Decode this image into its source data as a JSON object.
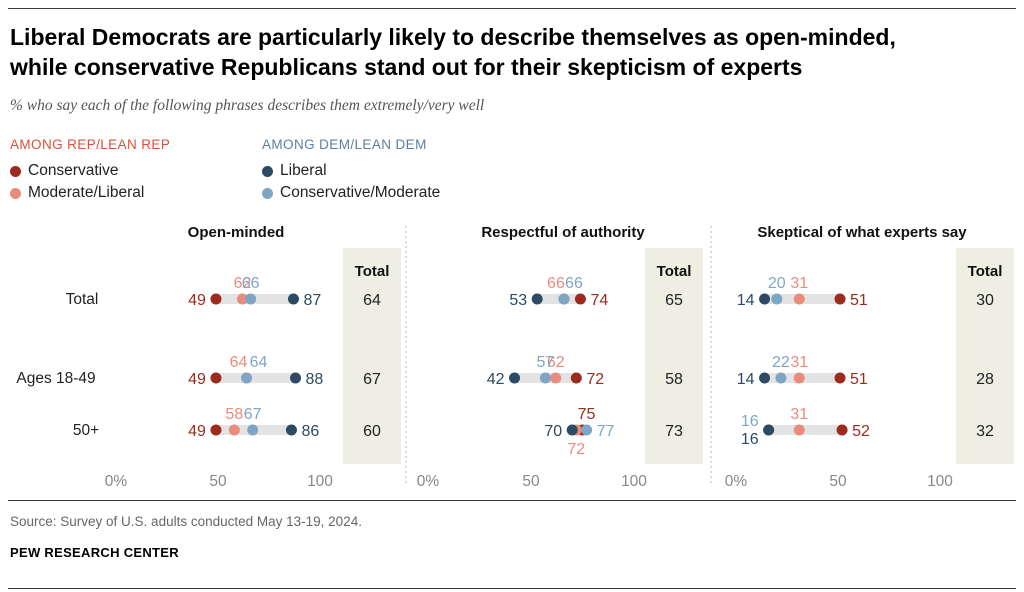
{
  "title": {
    "line1": "Liberal Democrats are particularly likely to describe themselves as open-minded,",
    "line2": "while conservative Republicans stand out for their skepticism of experts"
  },
  "subtitle": "% who say each of the following phrases describes them extremely/very well",
  "legend": {
    "rep": {
      "heading": "AMONG REP/LEAN REP",
      "items": [
        {
          "label": "Conservative",
          "color": "#9e2a1e"
        },
        {
          "label": "Moderate/Liberal",
          "color": "#ea8c7b"
        }
      ]
    },
    "dem": {
      "heading": "AMONG DEM/LEAN DEM",
      "items": [
        {
          "label": "Liberal",
          "color": "#2c4a63"
        },
        {
          "label": "Conservative/Moderate",
          "color": "#7ea6c4"
        }
      ]
    }
  },
  "colors": {
    "rep_heading": "#d9503a",
    "dem_heading": "#5b7fa0",
    "range_bar": "#e3e3e3",
    "total_band": "#eeeee3",
    "axis_text": "#888888"
  },
  "chart_data": {
    "type": "dot-range",
    "row_labels": [
      "Total",
      "Ages 18-49",
      "50+"
    ],
    "series_names": [
      "Conservative",
      "Moderate/Liberal",
      "Liberal",
      "Conservative/Moderate"
    ],
    "xlim": [
      0,
      100
    ],
    "ticks": [
      "0%",
      "50",
      "100"
    ],
    "total_header": "Total",
    "panels": [
      {
        "title": "Open-minded",
        "rows": [
          {
            "label": "Total",
            "conservative": 49,
            "moderate_liberal": 62,
            "liberal": 87,
            "conservative_moderate": 66,
            "total": 64
          },
          {
            "label": "Ages 18-49",
            "conservative": 49,
            "moderate_liberal": 64,
            "liberal": 88,
            "conservative_moderate": 64,
            "total": 67
          },
          {
            "label": "50+",
            "conservative": 49,
            "moderate_liberal": 58,
            "liberal": 86,
            "conservative_moderate": 67,
            "total": 60
          }
        ]
      },
      {
        "title": "Respectful of authority",
        "rows": [
          {
            "label": "Total",
            "conservative": 74,
            "moderate_liberal": 66,
            "liberal": 53,
            "conservative_moderate": 66,
            "total": 65
          },
          {
            "label": "Ages 18-49",
            "conservative": 72,
            "moderate_liberal": 62,
            "liberal": 42,
            "conservative_moderate": 57,
            "total": 58
          },
          {
            "label": "50+",
            "conservative": 75,
            "moderate_liberal": 72,
            "liberal": 70,
            "conservative_moderate": 77,
            "total": 73
          }
        ]
      },
      {
        "title": "Skeptical of what experts say",
        "rows": [
          {
            "label": "Total",
            "conservative": 51,
            "moderate_liberal": 31,
            "liberal": 14,
            "conservative_moderate": 20,
            "total": 30
          },
          {
            "label": "Ages 18-49",
            "conservative": 51,
            "moderate_liberal": 31,
            "liberal": 14,
            "conservative_moderate": 22,
            "total": 28
          },
          {
            "label": "50+",
            "conservative": 52,
            "moderate_liberal": 31,
            "liberal": 16,
            "conservative_moderate": 16,
            "total": 32
          }
        ]
      }
    ]
  },
  "source": "Source: Survey of U.S. adults conducted May 13-19, 2024.",
  "organization": "PEW RESEARCH CENTER"
}
